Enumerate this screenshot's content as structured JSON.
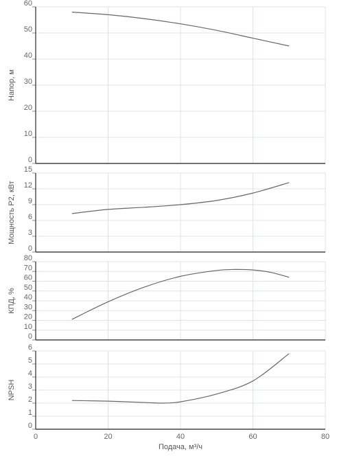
{
  "chart_data": {
    "type": "line",
    "xlabel": "Подача, м³/ч",
    "xlim": [
      0,
      80
    ],
    "xticks": [
      0,
      20,
      40,
      60,
      80
    ],
    "grid": true,
    "panels": [
      {
        "ylabel": "Напор, м",
        "ylim": [
          0,
          60
        ],
        "yticks": [
          0,
          10,
          20,
          30,
          40,
          50,
          60
        ],
        "series": [
          {
            "x": [
              10,
              20,
              30,
              40,
              50,
              60,
              70
            ],
            "y": [
              58,
              57,
              55.5,
              53.5,
              51,
              48,
              45
            ]
          }
        ]
      },
      {
        "ylabel": "Мощность P2, кВт",
        "ylim": [
          0,
          15
        ],
        "yticks": [
          0,
          3,
          6,
          9,
          12,
          15
        ],
        "series": [
          {
            "x": [
              10,
              20,
              30,
              40,
              50,
              60,
              70
            ],
            "y": [
              7.3,
              8.1,
              8.5,
              9.0,
              9.8,
              11.2,
              13.2
            ]
          }
        ]
      },
      {
        "ylabel": "КПД, %",
        "ylim": [
          0,
          80
        ],
        "yticks": [
          0,
          10,
          20,
          30,
          40,
          50,
          60,
          70,
          80
        ],
        "series": [
          {
            "x": [
              10,
              20,
              30,
              40,
              50,
              55,
              60,
              65,
              70
            ],
            "y": [
              21,
              39,
              54,
              65,
              71,
              72,
              71.5,
              69,
              64
            ]
          }
        ]
      },
      {
        "ylabel": "NPSH",
        "ylim": [
          0,
          6
        ],
        "yticks": [
          0,
          1,
          2,
          3,
          4,
          5,
          6
        ],
        "series": [
          {
            "x": [
              10,
              20,
              30,
              35,
              40,
              50,
              60,
              70
            ],
            "y": [
              2.2,
              2.15,
              2.05,
              2.0,
              2.1,
              2.7,
              3.7,
              5.8
            ]
          }
        ]
      }
    ]
  }
}
